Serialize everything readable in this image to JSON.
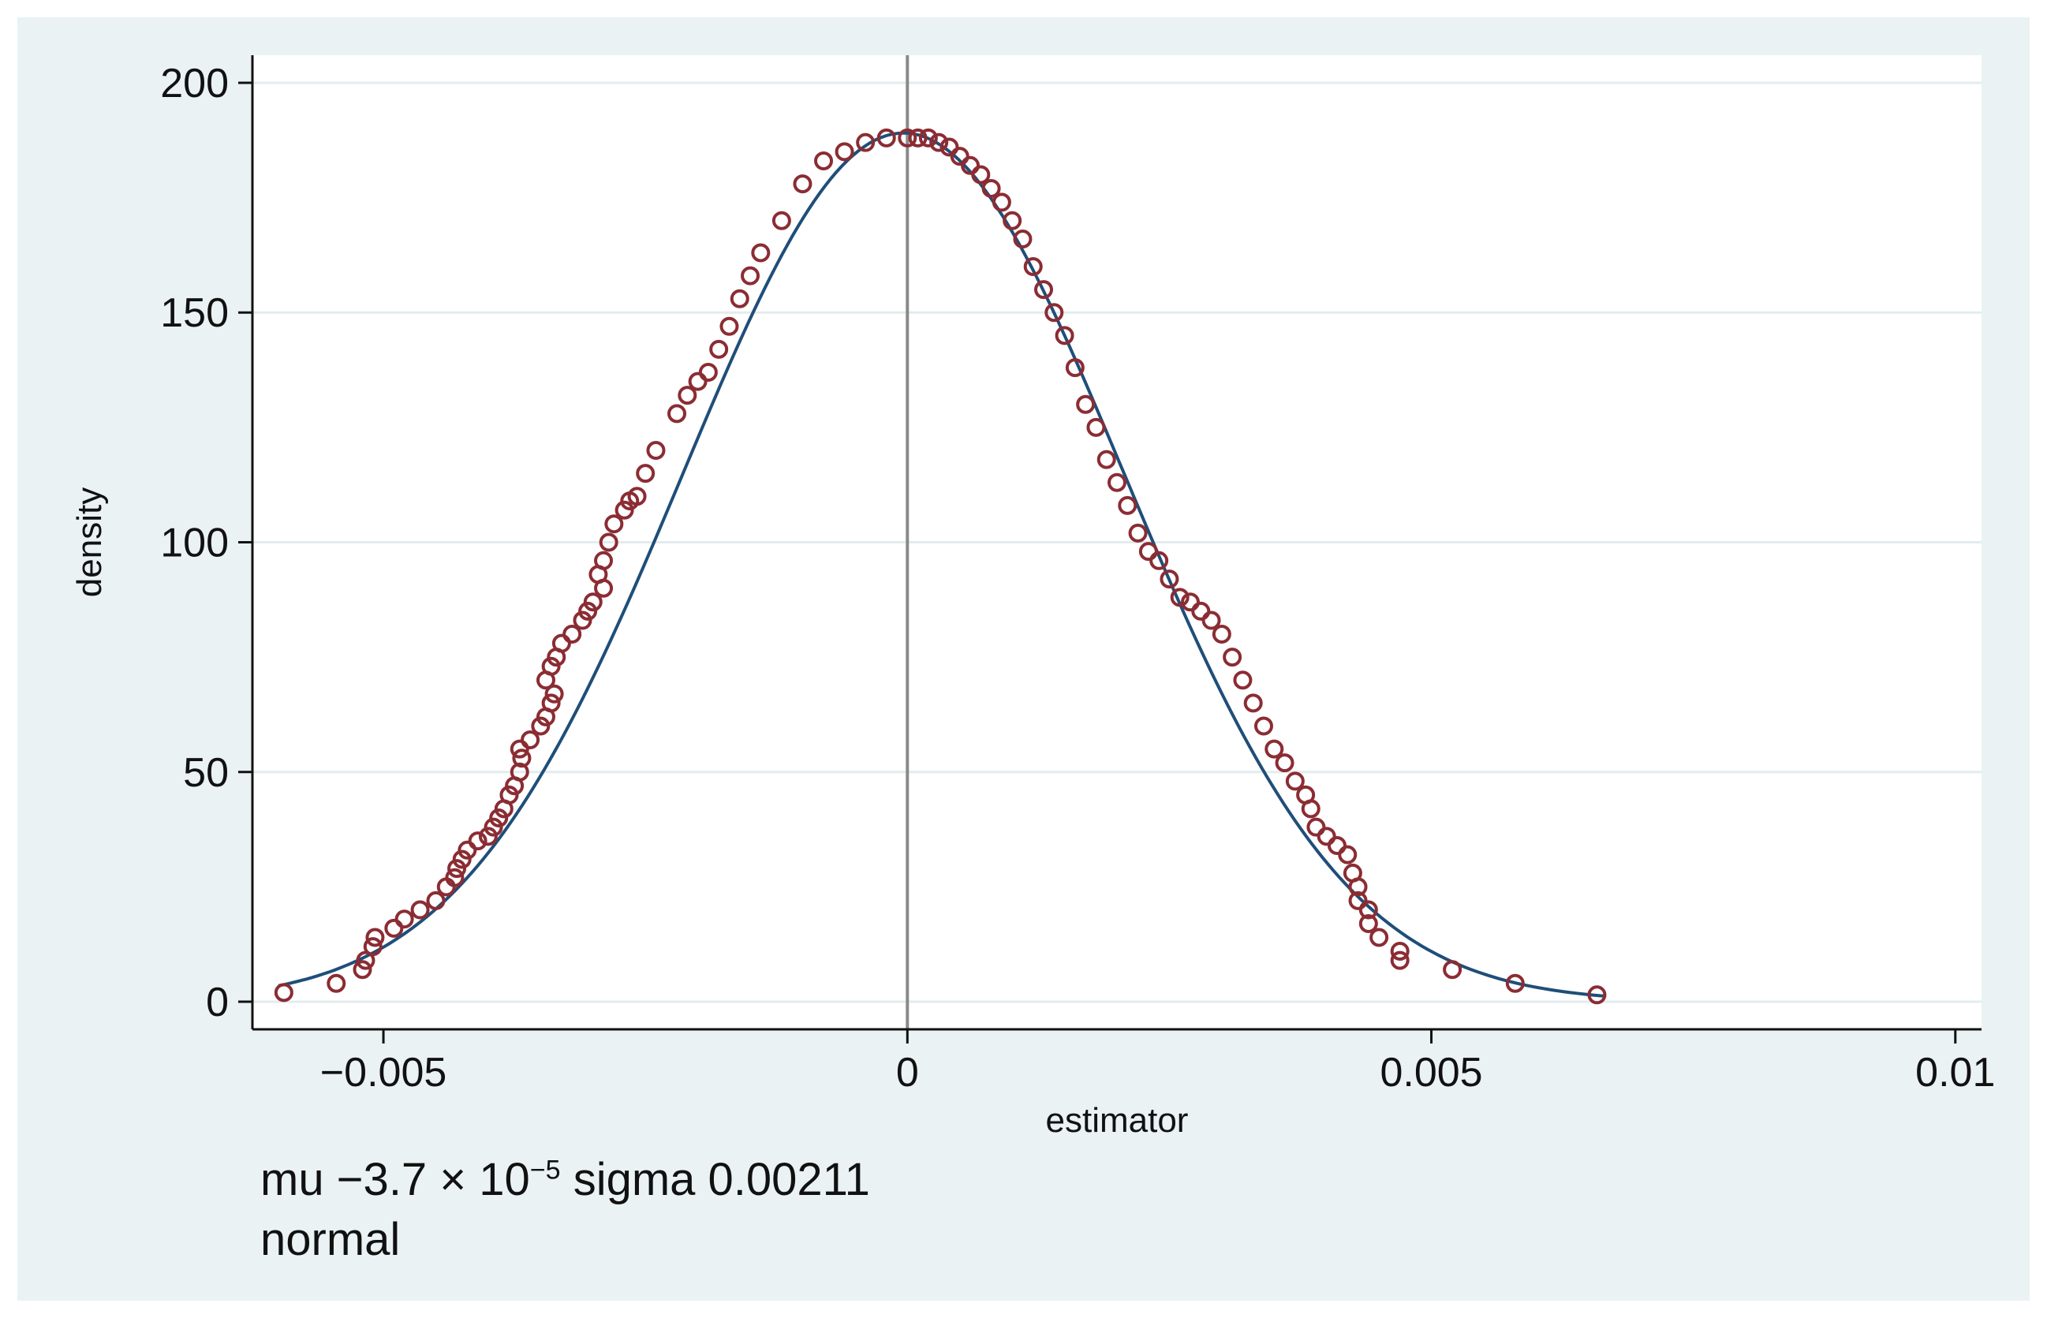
{
  "chart_data": {
    "type": "scatter",
    "xlabel": "estimator",
    "ylabel": "density",
    "xlim": [
      -0.00625,
      0.01025
    ],
    "ylim": [
      -6,
      206
    ],
    "x_ticks": [
      -0.005,
      0,
      0.005,
      0.01
    ],
    "x_tick_labels": [
      "−0.005",
      "0",
      "0.005",
      "0.01"
    ],
    "y_ticks": [
      0,
      50,
      100,
      150,
      200
    ],
    "y_tick_labels": [
      "0",
      "50",
      "100",
      "150",
      "200"
    ],
    "grid": "horizontal",
    "vertical_reference_line": 0,
    "series": [
      {
        "kind": "points",
        "marker": "hollow-circle",
        "color": "#8b2c33",
        "x": [
          -0.00595,
          -0.00545,
          -0.0052,
          -0.00517,
          -0.0051,
          -0.00508,
          -0.0049,
          -0.0048,
          -0.00465,
          -0.0045,
          -0.0044,
          -0.00432,
          -0.0043,
          -0.00425,
          -0.0042,
          -0.0041,
          -0.004,
          -0.00395,
          -0.0039,
          -0.00385,
          -0.0038,
          -0.00375,
          -0.0037,
          -0.00368,
          -0.0037,
          -0.0036,
          -0.0035,
          -0.00345,
          -0.0034,
          -0.00337,
          -0.00345,
          -0.0034,
          -0.00335,
          -0.0033,
          -0.0032,
          -0.0031,
          -0.00305,
          -0.003,
          -0.0029,
          -0.00295,
          -0.0029,
          -0.00285,
          -0.0028,
          -0.0027,
          -0.00265,
          -0.00258,
          -0.0025,
          -0.0024,
          -0.0022,
          -0.0021,
          -0.002,
          -0.0019,
          -0.0018,
          -0.0017,
          -0.0016,
          -0.0015,
          -0.0014,
          -0.0012,
          -0.001,
          -0.0008,
          -0.0006,
          -0.0004,
          -0.0002,
          0.0,
          0.0001,
          0.0002,
          0.0003,
          0.0004,
          0.0005,
          0.0006,
          0.0007,
          0.0008,
          0.0009,
          0.001,
          0.0011,
          0.0012,
          0.0013,
          0.0014,
          0.0015,
          0.0016,
          0.0017,
          0.0018,
          0.0019,
          0.002,
          0.0021,
          0.0022,
          0.0023,
          0.0024,
          0.0025,
          0.0026,
          0.0027,
          0.0028,
          0.0029,
          0.003,
          0.0031,
          0.0032,
          0.0033,
          0.0034,
          0.0035,
          0.0036,
          0.0037,
          0.0038,
          0.00385,
          0.0039,
          0.004,
          0.0041,
          0.0042,
          0.00425,
          0.0043,
          0.0043,
          0.0044,
          0.0044,
          0.0045,
          0.0047,
          0.0047,
          0.0052,
          0.0058,
          0.00658
        ],
        "y": [
          2,
          4,
          7,
          9,
          12,
          14,
          16,
          18,
          20,
          22,
          25,
          27,
          29,
          31,
          33,
          35,
          36,
          38,
          40,
          42,
          45,
          47,
          50,
          53,
          55,
          57,
          60,
          62,
          65,
          67,
          70,
          73,
          75,
          78,
          80,
          83,
          85,
          87,
          90,
          93,
          96,
          100,
          104,
          107,
          109,
          110,
          115,
          120,
          128,
          132,
          135,
          137,
          142,
          147,
          153,
          158,
          163,
          170,
          178,
          183,
          185,
          187,
          188,
          188,
          188,
          188,
          187,
          186,
          184,
          182,
          180,
          177,
          174,
          170,
          166,
          160,
          155,
          150,
          145,
          138,
          130,
          125,
          118,
          113,
          108,
          102,
          98,
          96,
          92,
          88,
          87,
          85,
          83,
          80,
          75,
          70,
          65,
          60,
          55,
          52,
          48,
          45,
          42,
          38,
          36,
          34,
          32,
          28,
          25,
          22,
          20,
          17,
          14,
          11,
          9,
          7,
          4,
          1.5
        ]
      },
      {
        "kind": "normal-curve",
        "color": "#1f4e79",
        "mu": -3.7e-05,
        "sigma": 0.00211,
        "x_range": [
          -0.006,
          0.00665
        ]
      }
    ]
  },
  "note": {
    "line1_pre": "mu −3.7 × 10",
    "line1_exp": "−5",
    "line1_post": " sigma 0.00211",
    "line2": "normal"
  }
}
